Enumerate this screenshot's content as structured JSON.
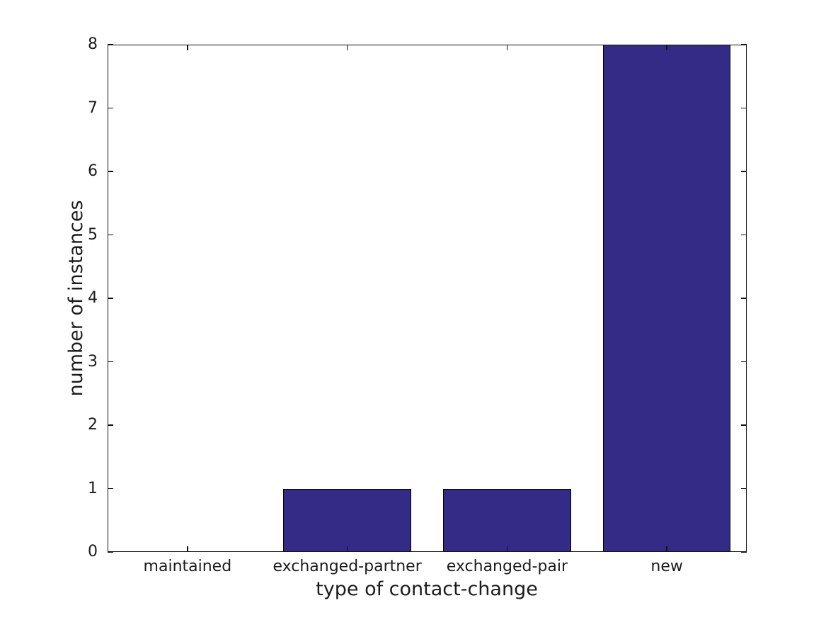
{
  "chart_data": {
    "type": "bar",
    "title": "",
    "categories": [
      "maintained",
      "exchanged-partner",
      "exchanged-pair",
      "new"
    ],
    "values": [
      0,
      1,
      1,
      8
    ],
    "xlabel": "type of contact-change",
    "ylabel": "number of instances",
    "ylim": [
      0,
      8
    ],
    "yticks": [
      "0",
      "1",
      "2",
      "3",
      "4",
      "5",
      "6",
      "7",
      "8"
    ],
    "bar_color": "#342b87",
    "bar_edge_color": "#000000",
    "axis_color": "#111111",
    "text_color": "#1c1c1c",
    "background_color": "#ffffff",
    "grid": false,
    "legend": null,
    "tick_direction": "in",
    "ticks_all_sides": true,
    "bar_width_fraction": 0.8
  }
}
